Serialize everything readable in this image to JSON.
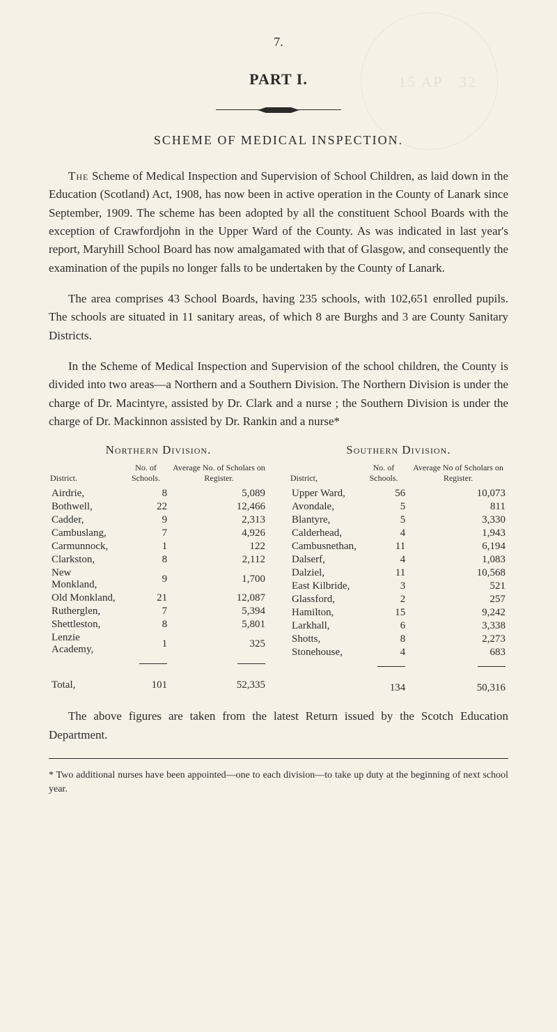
{
  "page_number": "7.",
  "part_heading": "PART I.",
  "scheme_heading": "SCHEME OF MEDICAL INSPECTION.",
  "paragraphs": {
    "p1_lead": "The",
    "p1_rest": " Scheme of Medical Inspection and Supervision of School Children, as laid down in the Education (Scotland) Act, 1908, has now been in active operation in the County of Lanark since September, 1909. The scheme has been adopted by all the constituent School Boards with the exception of Crawfordjohn in the Upper Ward of the County. As was indicated in last year's report, Maryhill School Board has now amalgamated with that of Glasgow, and consequently the examination of the pupils no longer falls to be undertaken by the County of Lanark.",
    "p2": "The area comprises 43 School Boards, having 235 schools, with 102,651 enrolled pupils. The schools are situated in 11 sanitary areas, of which 8 are Burghs and 3 are County Sanitary Districts.",
    "p3": "In the Scheme of Medical Inspection and Supervision of the school children, the County is divided into two areas—a Northern and a Southern Division. The Northern Division is under the charge of Dr. Macintyre, assisted by Dr. Clark and a nurse ; the Southern Division is under the charge of Dr. Mackinnon assisted by Dr. Rankin and a nurse*"
  },
  "northern": {
    "title": "Northern Division.",
    "headers": {
      "district": "District.",
      "no_schools": "No. of Schools.",
      "avg": "Average No. of Scholars on Register."
    },
    "rows": [
      {
        "district": "Airdrie,",
        "schools": "8",
        "avg": "5,089"
      },
      {
        "district": "Bothwell,",
        "schools": "22",
        "avg": "12,466"
      },
      {
        "district": "Cadder,",
        "schools": "9",
        "avg": "2,313"
      },
      {
        "district": "Cambuslang,",
        "schools": "7",
        "avg": "4,926"
      },
      {
        "district": "Carmunnock,",
        "schools": "1",
        "avg": "122"
      },
      {
        "district": "Clarkston,",
        "schools": "8",
        "avg": "2,112"
      },
      {
        "district": "New Monkland,",
        "schools": "9",
        "avg": "1,700"
      },
      {
        "district": "Old Monkland,",
        "schools": "21",
        "avg": "12,087"
      },
      {
        "district": "Rutherglen,",
        "schools": "7",
        "avg": "5,394"
      },
      {
        "district": "Shettleston,",
        "schools": "8",
        "avg": "5,801"
      },
      {
        "district": "Lenzie Academy,",
        "schools": "1",
        "avg": "325"
      }
    ],
    "total": {
      "label": "Total,",
      "schools": "101",
      "avg": "52,335"
    }
  },
  "southern": {
    "title": "Southern Division.",
    "headers": {
      "district": "District,",
      "no_schools": "No. of Schools.",
      "avg": "Average No of Scholars on Register."
    },
    "rows": [
      {
        "district": "Upper Ward,",
        "schools": "56",
        "avg": "10,073"
      },
      {
        "district": "Avondale,",
        "schools": "5",
        "avg": "811"
      },
      {
        "district": "Blantyre,",
        "schools": "5",
        "avg": "3,330"
      },
      {
        "district": "Calderhead,",
        "schools": "4",
        "avg": "1,943"
      },
      {
        "district": "Cambusnethan,",
        "schools": "11",
        "avg": "6,194"
      },
      {
        "district": "Dalserf,",
        "schools": "4",
        "avg": "1,083"
      },
      {
        "district": "Dalziel,",
        "schools": "11",
        "avg": "10,568"
      },
      {
        "district": "East Kilbride,",
        "schools": "3",
        "avg": "521"
      },
      {
        "district": "Glassford,",
        "schools": "2",
        "avg": "257"
      },
      {
        "district": "Hamilton,",
        "schools": "15",
        "avg": "9,242"
      },
      {
        "district": "Larkhall,",
        "schools": "6",
        "avg": "3,338"
      },
      {
        "district": "Shotts,",
        "schools": "8",
        "avg": "2,273"
      },
      {
        "district": "Stonehouse,",
        "schools": "4",
        "avg": "683"
      }
    ],
    "total": {
      "label": "",
      "schools": "134",
      "avg": "50,316"
    }
  },
  "closing": "The above figures are taken from the latest Return issued by the Scotch Education Department.",
  "footnote": "* Two additional nurses have been appointed—one to each division—to take up duty at the beginning of next school year.",
  "overlay1": "15 AP",
  "overlay2": "32",
  "colors": {
    "bg": "#f5f1e6",
    "text": "#2a2a2a",
    "faint": "#d8d2c2"
  }
}
